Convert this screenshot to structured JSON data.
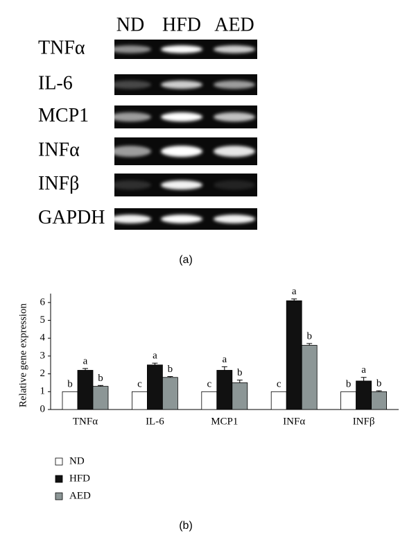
{
  "gel": {
    "columns": [
      "ND",
      "HFD",
      "AED"
    ],
    "rows": [
      "TNFα",
      "IL-6",
      "MCP1",
      "INFα",
      "INFβ",
      "GAPDH"
    ],
    "caption": "(a)"
  },
  "chart_data": {
    "type": "bar",
    "y_label": "Relative gene expression",
    "categories": [
      "TNFα",
      "IL-6",
      "MCP1",
      "INFα",
      "INFβ"
    ],
    "series": [
      {
        "name": "ND",
        "color": "#ffffff",
        "values": [
          1,
          1,
          1,
          1,
          1
        ],
        "letters": [
          "b",
          "c",
          "c",
          "c",
          "b"
        ]
      },
      {
        "name": "HFD",
        "color": "#111111",
        "values": [
          2.2,
          2.5,
          2.2,
          6.1,
          1.6
        ],
        "errors": [
          0.1,
          0.1,
          0.2,
          0.1,
          0.2
        ],
        "letters": [
          "a",
          "a",
          "a",
          "a",
          "a"
        ]
      },
      {
        "name": "AED",
        "color": "#8c9696",
        "values": [
          1.3,
          1.8,
          1.5,
          3.6,
          1.0
        ],
        "errors": [
          0.05,
          0.05,
          0.15,
          0.1,
          0.05
        ],
        "letters": [
          "b",
          "b",
          "b",
          "b",
          "b"
        ]
      }
    ],
    "ylim": [
      0,
      6.5
    ],
    "yticks": [
      0,
      1,
      2,
      3,
      4,
      5,
      6
    ],
    "legend": "bottom-left",
    "caption": "(b)"
  }
}
